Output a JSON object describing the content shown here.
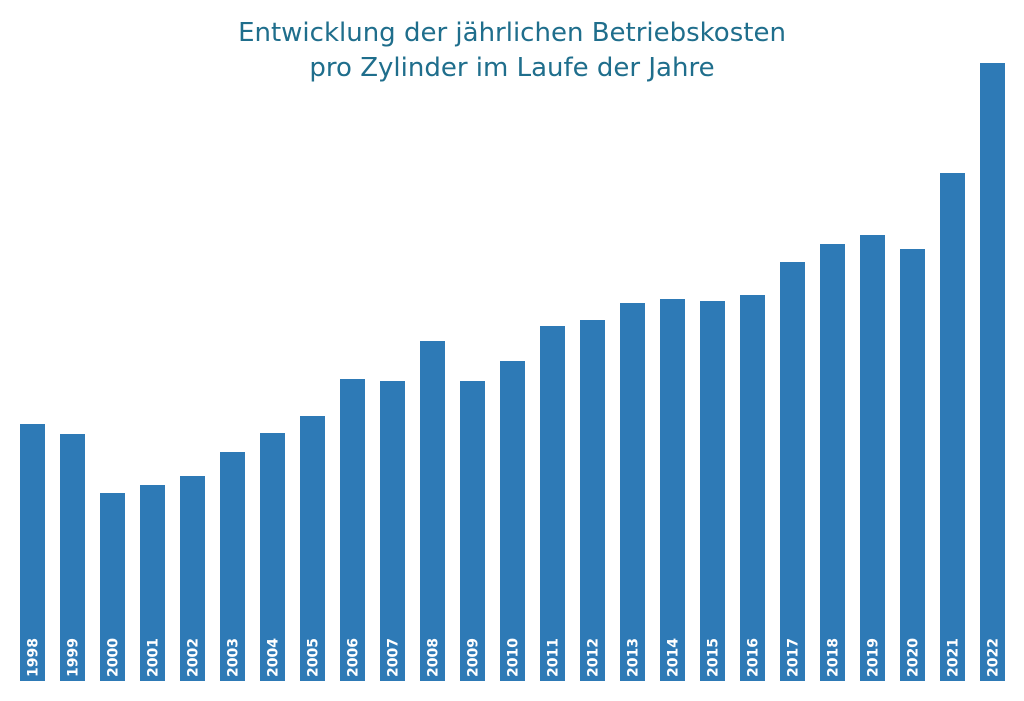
{
  "chart_data": {
    "type": "bar",
    "title_line1": "Entwicklung der jährlichen Betriebskosten",
    "title_line2": "pro Zylinder im Laufe der Jahre",
    "xlabel": "",
    "ylabel": "",
    "grid": false,
    "legend": "none",
    "data_labels": "years written vertically inside the base of each bar",
    "categories": [
      "1998",
      "1999",
      "2000",
      "2001",
      "2002",
      "2003",
      "2004",
      "2005",
      "2006",
      "2007",
      "2008",
      "2009",
      "2010",
      "2011",
      "2012",
      "2013",
      "2014",
      "2015",
      "2016",
      "2017",
      "2018",
      "2019",
      "2020",
      "2021",
      "2022"
    ],
    "values": [
      257,
      247,
      188,
      196,
      205,
      229,
      248,
      265,
      302,
      300,
      340,
      300,
      320,
      355,
      361,
      378,
      382,
      380,
      386,
      419,
      437,
      446,
      432,
      508,
      618
    ],
    "ylim": [
      0,
      618
    ],
    "colors": {
      "bar": "#2e7ab6",
      "title": "#1f6e8c",
      "label": "#ffffff"
    }
  }
}
